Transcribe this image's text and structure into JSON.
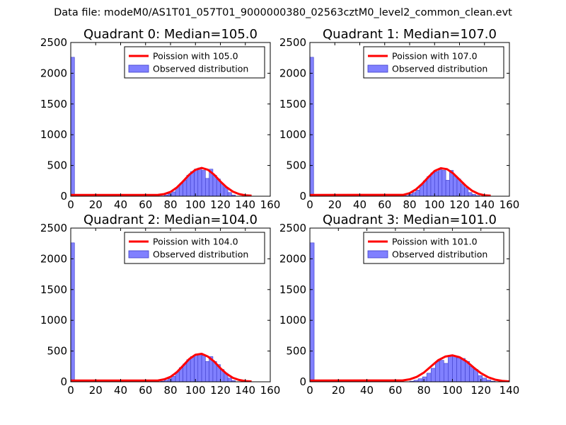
{
  "figure": {
    "suptitle": "Data file: modeM0/AS1T01_057T01_9000000380_02563cztM0_level2_common_clean.evt"
  },
  "colors": {
    "fit_line": "#ff0000",
    "bar_fill": "#8080ff",
    "bar_edge": "#3c3cc8",
    "axes": "#000000"
  },
  "chart_data": [
    {
      "type": "bar",
      "title": "Quadrant 0: Median=105.0",
      "xlim": [
        0,
        160
      ],
      "ylim": [
        0,
        2500
      ],
      "xticks": [
        0,
        20,
        40,
        60,
        80,
        100,
        120,
        140,
        160
      ],
      "yticks": [
        0,
        500,
        1000,
        1500,
        2000,
        2500
      ],
      "legend_position": "upper-right",
      "series": [
        {
          "name": "Poission with 105.0",
          "kind": "line",
          "x": [
            0,
            70,
            75,
            80,
            85,
            90,
            95,
            100,
            105,
            110,
            115,
            120,
            125,
            130,
            135,
            140,
            145
          ],
          "y": [
            20,
            22,
            35,
            70,
            140,
            240,
            350,
            430,
            460,
            430,
            350,
            240,
            145,
            75,
            35,
            15,
            8
          ]
        },
        {
          "name": "Observed distribution",
          "kind": "hist",
          "bin_width": 3,
          "bin_starts": [
            0,
            72,
            75,
            78,
            81,
            84,
            87,
            90,
            93,
            96,
            99,
            102,
            105,
            108,
            111,
            114,
            117,
            120,
            123,
            126,
            129
          ],
          "counts": [
            2260,
            5,
            20,
            40,
            70,
            140,
            200,
            260,
            340,
            400,
            440,
            460,
            420,
            290,
            440,
            340,
            280,
            200,
            140,
            60,
            20
          ]
        }
      ]
    },
    {
      "type": "bar",
      "title": "Quadrant 1: Median=107.0",
      "xlim": [
        0,
        160
      ],
      "ylim": [
        0,
        2500
      ],
      "xticks": [
        0,
        20,
        40,
        60,
        80,
        100,
        120,
        140,
        160
      ],
      "yticks": [
        0,
        500,
        1000,
        1500,
        2000,
        2500
      ],
      "legend_position": "upper-right",
      "series": [
        {
          "name": "Poission with 107.0",
          "kind": "line",
          "x": [
            0,
            75,
            80,
            85,
            90,
            95,
            100,
            105,
            110,
            115,
            120,
            125,
            130,
            135,
            140,
            145
          ],
          "y": [
            20,
            22,
            50,
            110,
            200,
            310,
            410,
            455,
            440,
            370,
            270,
            170,
            90,
            40,
            15,
            8
          ]
        },
        {
          "name": "Observed distribution",
          "kind": "hist",
          "bin_width": 3,
          "bin_starts": [
            0,
            76,
            79,
            82,
            85,
            88,
            91,
            94,
            97,
            100,
            103,
            106,
            109,
            112,
            115,
            118,
            121,
            124,
            127,
            130,
            133
          ],
          "counts": [
            2260,
            10,
            30,
            60,
            100,
            180,
            250,
            320,
            380,
            400,
            430,
            420,
            260,
            420,
            330,
            280,
            200,
            140,
            60,
            30,
            10
          ]
        }
      ]
    },
    {
      "type": "bar",
      "title": "Quadrant 2: Median=104.0",
      "xlim": [
        0,
        160
      ],
      "ylim": [
        0,
        2500
      ],
      "xticks": [
        0,
        20,
        40,
        60,
        80,
        100,
        120,
        140,
        160
      ],
      "yticks": [
        0,
        500,
        1000,
        1500,
        2000,
        2500
      ],
      "legend_position": "upper-right",
      "series": [
        {
          "name": "Poission with 104.0",
          "kind": "line",
          "x": [
            0,
            70,
            75,
            80,
            85,
            90,
            95,
            100,
            105,
            110,
            115,
            120,
            125,
            130,
            135,
            140,
            145
          ],
          "y": [
            20,
            22,
            40,
            80,
            155,
            260,
            370,
            440,
            455,
            410,
            330,
            220,
            130,
            65,
            30,
            12,
            6
          ]
        },
        {
          "name": "Observed distribution",
          "kind": "hist",
          "bin_width": 3,
          "bin_starts": [
            0,
            72,
            75,
            78,
            81,
            84,
            87,
            90,
            93,
            96,
            99,
            102,
            105,
            108,
            111,
            114,
            117,
            120,
            123,
            126,
            129
          ],
          "counts": [
            2260,
            10,
            25,
            50,
            90,
            160,
            230,
            290,
            360,
            410,
            440,
            450,
            430,
            330,
            410,
            330,
            280,
            200,
            140,
            60,
            20
          ]
        }
      ]
    },
    {
      "type": "bar",
      "title": "Quadrant 3: Median=101.0",
      "xlim": [
        0,
        140
      ],
      "ylim": [
        0,
        2500
      ],
      "xticks": [
        0,
        20,
        40,
        60,
        80,
        100,
        120,
        140
      ],
      "yticks": [
        0,
        500,
        1000,
        1500,
        2000,
        2500
      ],
      "legend_position": "upper-right",
      "series": [
        {
          "name": "Poission with 101.0",
          "kind": "line",
          "x": [
            0,
            65,
            70,
            75,
            80,
            85,
            90,
            95,
            100,
            105,
            110,
            115,
            120,
            125,
            130,
            135,
            140
          ],
          "y": [
            20,
            22,
            40,
            80,
            150,
            250,
            350,
            410,
            430,
            400,
            330,
            230,
            140,
            75,
            35,
            15,
            6
          ]
        },
        {
          "name": "Observed distribution",
          "kind": "hist",
          "bin_width": 3,
          "bin_starts": [
            0,
            70,
            73,
            76,
            79,
            82,
            85,
            88,
            91,
            94,
            97,
            100,
            103,
            106,
            109,
            112,
            115,
            118,
            121,
            124,
            127
          ],
          "counts": [
            2260,
            10,
            25,
            50,
            80,
            140,
            220,
            330,
            350,
            300,
            420,
            420,
            390,
            380,
            330,
            250,
            200,
            100,
            60,
            30,
            10
          ]
        }
      ]
    }
  ]
}
